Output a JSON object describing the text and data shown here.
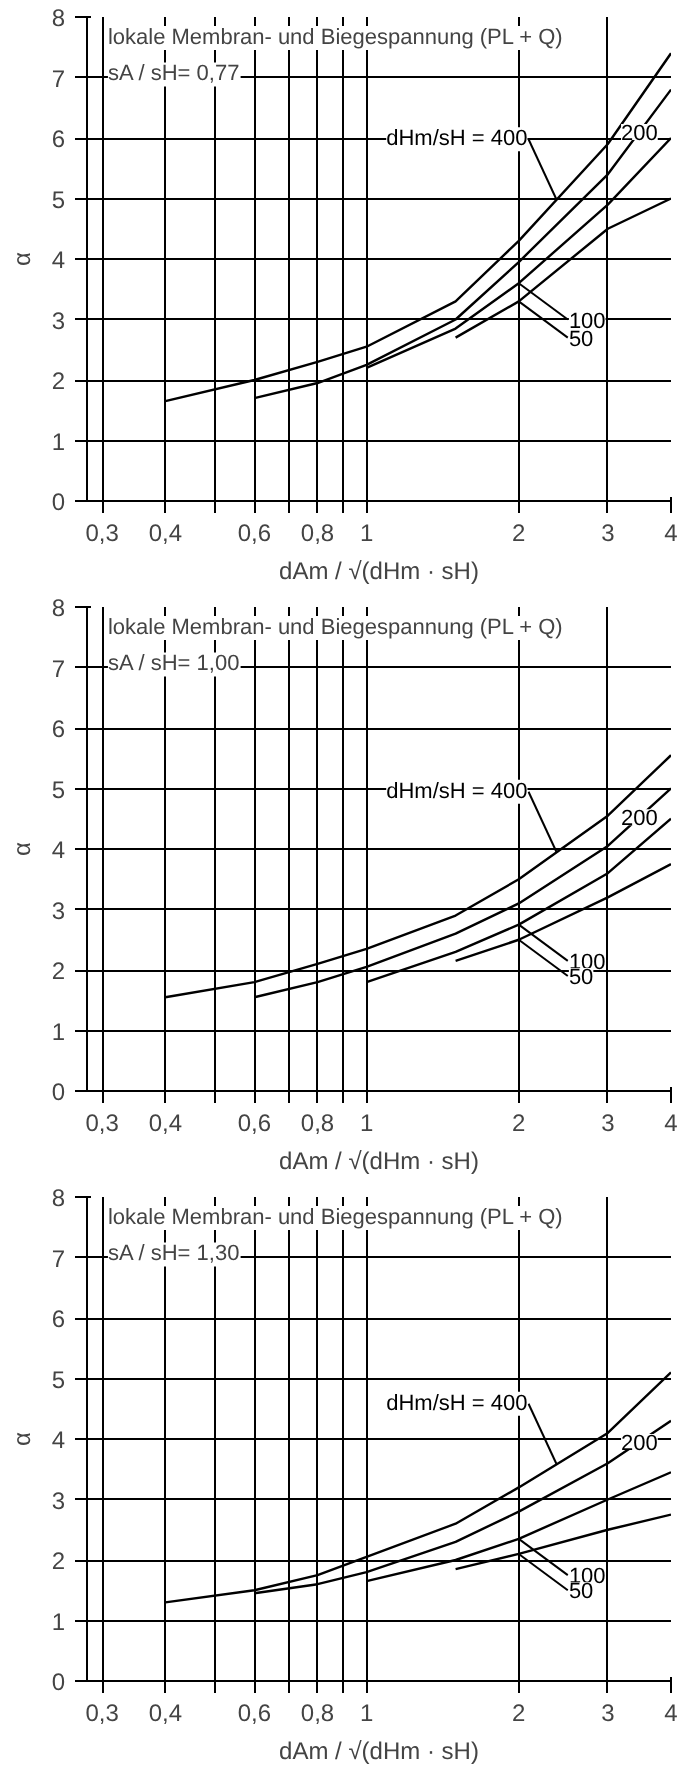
{
  "chart_data": [
    {
      "type": "line",
      "title": "lokale Membran- und Biegespannung (PL + Q)",
      "subtitle": "sA / sH= 0,77",
      "xlabel": "dAm / √(dHm · sH)",
      "ylabel": "α",
      "log": "x",
      "xlim": [
        0.28,
        4
      ],
      "ylim": [
        0,
        8
      ],
      "xticks": [
        {
          "value": 0.3,
          "label": "0,3"
        },
        {
          "value": 0.4,
          "label": "0,4"
        },
        {
          "value": 0.5,
          "label": null
        },
        {
          "value": 0.6,
          "label": "0,6"
        },
        {
          "value": 0.7,
          "label": null
        },
        {
          "value": 0.8,
          "label": "0,8"
        },
        {
          "value": 0.9,
          "label": null
        },
        1,
        2,
        3,
        4
      ],
      "yticks": [
        0,
        1,
        2,
        3,
        4,
        5,
        6,
        7,
        8
      ],
      "grid": true,
      "series": [
        {
          "name": "dHm/sH = 400",
          "color": "#000000",
          "x": [
            0.4,
            0.6,
            0.8,
            1,
            1.5,
            2,
            3,
            4
          ],
          "values": [
            1.65,
            2.0,
            2.3,
            2.55,
            3.3,
            4.3,
            5.9,
            7.4
          ]
        },
        {
          "name": "200",
          "color": "#000000",
          "x": [
            0.6,
            0.8,
            1,
            1.5,
            2,
            3,
            4
          ],
          "values": [
            1.7,
            1.95,
            2.25,
            3.0,
            3.95,
            5.4,
            6.8
          ]
        },
        {
          "name": "100",
          "color": "#000000",
          "x": [
            1,
            1.5,
            2,
            3,
            4
          ],
          "values": [
            2.2,
            2.85,
            3.6,
            4.9,
            6.0
          ]
        },
        {
          "name": "50",
          "color": "#000000",
          "x": [
            1.5,
            2,
            3,
            4
          ],
          "values": [
            2.7,
            3.3,
            4.5,
            5.0
          ]
        }
      ]
    },
    {
      "type": "line",
      "title": "lokale Membran- und Biegespannung (PL + Q)",
      "subtitle": "sA / sH= 1,00",
      "xlabel": "dAm / √(dHm · sH)",
      "ylabel": "α",
      "log": "x",
      "xlim": [
        0.28,
        4
      ],
      "ylim": [
        0,
        8
      ],
      "xticks": [
        {
          "value": 0.3,
          "label": "0,3"
        },
        {
          "value": 0.4,
          "label": "0,4"
        },
        {
          "value": 0.5,
          "label": null
        },
        {
          "value": 0.6,
          "label": "0,6"
        },
        {
          "value": 0.7,
          "label": null
        },
        {
          "value": 0.8,
          "label": "0,8"
        },
        {
          "value": 0.9,
          "label": null
        },
        1,
        2,
        3,
        4
      ],
      "yticks": [
        0,
        1,
        2,
        3,
        4,
        5,
        6,
        7,
        8
      ],
      "grid": true,
      "series": [
        {
          "name": "dHm/sH = 400",
          "color": "#000000",
          "x": [
            0.4,
            0.6,
            0.8,
            1,
            1.5,
            2,
            3,
            4
          ],
          "values": [
            1.55,
            1.8,
            2.1,
            2.35,
            2.9,
            3.5,
            4.55,
            5.55
          ]
        },
        {
          "name": "200",
          "color": "#000000",
          "x": [
            0.6,
            0.8,
            1,
            1.5,
            2,
            3,
            4
          ],
          "values": [
            1.55,
            1.8,
            2.05,
            2.6,
            3.1,
            4.05,
            5.0
          ]
        },
        {
          "name": "100",
          "color": "#000000",
          "x": [
            1,
            1.5,
            2,
            3,
            4
          ],
          "values": [
            1.8,
            2.3,
            2.75,
            3.6,
            4.5
          ]
        },
        {
          "name": "50",
          "color": "#000000",
          "x": [
            1.5,
            2,
            3,
            4
          ],
          "values": [
            2.15,
            2.5,
            3.2,
            3.75
          ]
        }
      ]
    },
    {
      "type": "line",
      "title": "lokale Membran- und Biegespannung (PL + Q)",
      "subtitle": "sA / sH= 1,30",
      "xlabel": "dAm / √(dHm · sH)",
      "ylabel": "α",
      "log": "x",
      "xlim": [
        0.28,
        4
      ],
      "ylim": [
        0,
        8
      ],
      "xticks": [
        {
          "value": 0.3,
          "label": "0,3"
        },
        {
          "value": 0.4,
          "label": "0,4"
        },
        {
          "value": 0.5,
          "label": null
        },
        {
          "value": 0.6,
          "label": "0,6"
        },
        {
          "value": 0.7,
          "label": null
        },
        {
          "value": 0.8,
          "label": "0,8"
        },
        {
          "value": 0.9,
          "label": null
        },
        1,
        2,
        3,
        4
      ],
      "yticks": [
        0,
        1,
        2,
        3,
        4,
        5,
        6,
        7,
        8
      ],
      "grid": true,
      "series": [
        {
          "name": "dHm/sH = 400",
          "color": "#000000",
          "x": [
            0.4,
            0.6,
            0.8,
            1,
            1.5,
            2,
            3,
            4
          ],
          "values": [
            1.3,
            1.5,
            1.75,
            2.05,
            2.6,
            3.2,
            4.1,
            5.1
          ]
        },
        {
          "name": "200",
          "color": "#000000",
          "x": [
            0.6,
            0.8,
            1,
            1.5,
            2,
            3,
            4
          ],
          "values": [
            1.45,
            1.6,
            1.8,
            2.3,
            2.8,
            3.6,
            4.3
          ]
        },
        {
          "name": "100",
          "color": "#000000",
          "x": [
            1,
            1.5,
            2,
            3,
            4
          ],
          "values": [
            1.65,
            2.0,
            2.35,
            3.0,
            3.45
          ]
        },
        {
          "name": "50",
          "color": "#000000",
          "x": [
            1.5,
            2,
            3,
            4
          ],
          "values": [
            1.85,
            2.1,
            2.5,
            2.75
          ]
        }
      ]
    }
  ]
}
